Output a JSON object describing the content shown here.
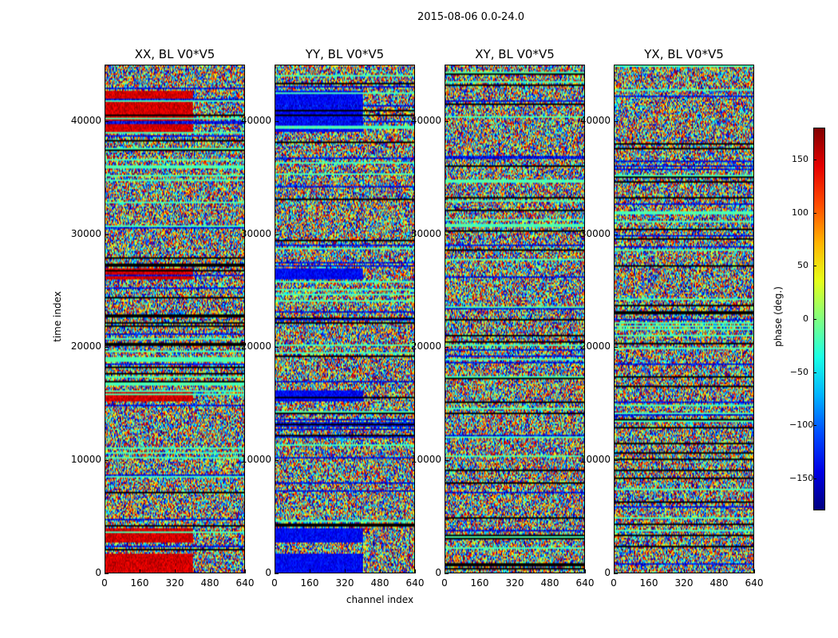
{
  "chart_data": {
    "type": "heatmap",
    "title": "2015-08-06 0.0-24.0",
    "xlabel": "channel index",
    "ylabel": "time index",
    "xlim": [
      0,
      640
    ],
    "ylim": [
      0,
      45000
    ],
    "xticks": [
      "0",
      "160",
      "320",
      "480",
      "640"
    ],
    "yticks": [
      "0",
      "10000",
      "20000",
      "30000",
      "40000"
    ],
    "panels": [
      {
        "name": "XX, BL V0*V5",
        "bias": "red"
      },
      {
        "name": "YY, BL V0*V5",
        "bias": "blue"
      },
      {
        "name": "XY, BL V0*V5",
        "bias": "noise"
      },
      {
        "name": "YX, BL V0*V5",
        "bias": "noise"
      }
    ],
    "colorbar": {
      "label": "phase (deg.)",
      "range": [
        -180,
        180
      ],
      "ticks": [
        "150",
        "100",
        "50",
        "0",
        "−50",
        "−100",
        "−150"
      ],
      "colormap": "jet"
    }
  }
}
